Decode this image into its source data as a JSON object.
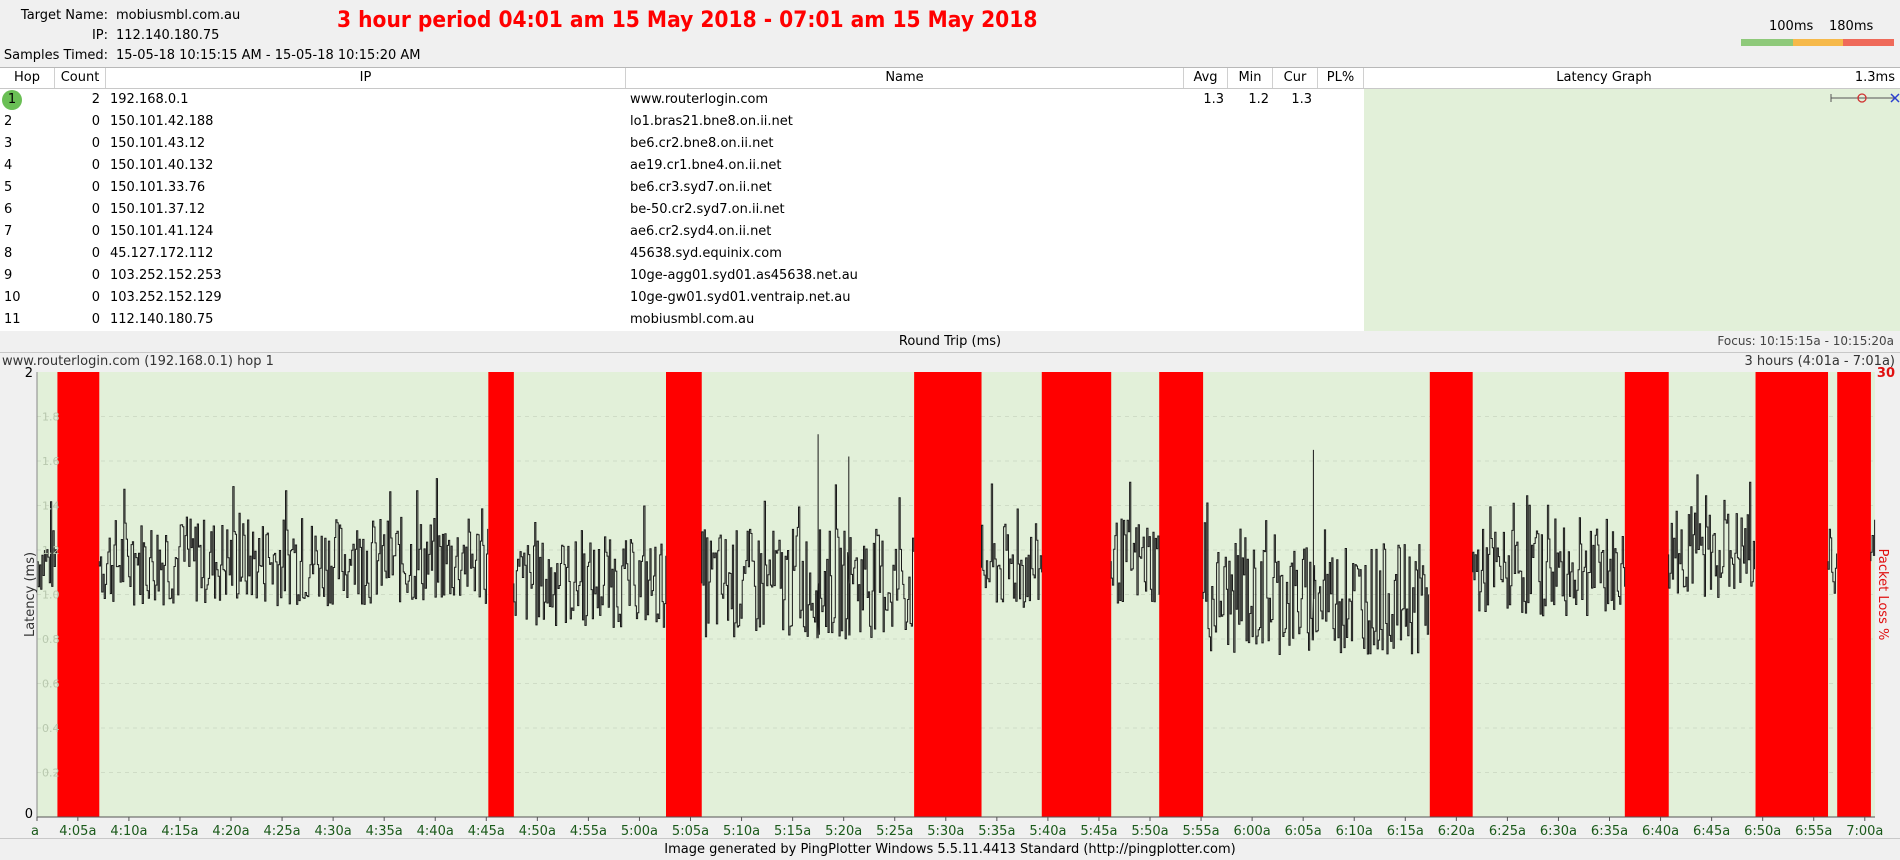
{
  "header": {
    "target_label": "Target Name:",
    "target_value": "mobiusmbl.com.au",
    "ip_label": "IP:",
    "ip_value": "112.140.180.75",
    "samples_label": "Samples Timed:",
    "samples_value": "15-05-18 10:15:15 AM - 15-05-18 10:15:20 AM",
    "banner": "3 hour period 04:01 am 15 May 2018 - 07:01 am 15 May 2018",
    "legend_100": "100ms",
    "legend_180": "180ms",
    "legend_colors": [
      "#8ec97a",
      "#f6b94a",
      "#ef6a5a"
    ]
  },
  "table": {
    "headers": {
      "hop": "Hop",
      "count": "Count",
      "ip": "IP",
      "name": "Name",
      "avg": "Avg",
      "min": "Min",
      "cur": "Cur",
      "pl": "PL%",
      "latency_graph": "Latency Graph",
      "scale": "1.3ms"
    },
    "rows": [
      {
        "hop": "1",
        "count": "2",
        "ip": "192.168.0.1",
        "name": "www.routerlogin.com",
        "avg": "1.3",
        "min": "1.2",
        "cur": "1.3"
      },
      {
        "hop": "2",
        "count": "0",
        "ip": "150.101.42.188",
        "name": "lo1.bras21.bne8.on.ii.net",
        "avg": "",
        "min": "",
        "cur": ""
      },
      {
        "hop": "3",
        "count": "0",
        "ip": "150.101.43.12",
        "name": "be6.cr2.bne8.on.ii.net",
        "avg": "",
        "min": "",
        "cur": ""
      },
      {
        "hop": "4",
        "count": "0",
        "ip": "150.101.40.132",
        "name": "ae19.cr1.bne4.on.ii.net",
        "avg": "",
        "min": "",
        "cur": ""
      },
      {
        "hop": "5",
        "count": "0",
        "ip": "150.101.33.76",
        "name": "be6.cr3.syd7.on.ii.net",
        "avg": "",
        "min": "",
        "cur": ""
      },
      {
        "hop": "6",
        "count": "0",
        "ip": "150.101.37.12",
        "name": "be-50.cr2.syd7.on.ii.net",
        "avg": "",
        "min": "",
        "cur": ""
      },
      {
        "hop": "7",
        "count": "0",
        "ip": "150.101.41.124",
        "name": "ae6.cr2.syd4.on.ii.net",
        "avg": "",
        "min": "",
        "cur": ""
      },
      {
        "hop": "8",
        "count": "0",
        "ip": "45.127.172.112",
        "name": "45638.syd.equinix.com",
        "avg": "",
        "min": "",
        "cur": ""
      },
      {
        "hop": "9",
        "count": "0",
        "ip": "103.252.152.253",
        "name": "10ge-agg01.syd01.as45638.net.au",
        "avg": "",
        "min": "",
        "cur": ""
      },
      {
        "hop": "10",
        "count": "0",
        "ip": "103.252.152.129",
        "name": "10ge-gw01.syd01.ventraip.net.au",
        "avg": "",
        "min": "",
        "cur": ""
      },
      {
        "hop": "11",
        "count": "0",
        "ip": "112.140.180.75",
        "name": "mobiusmbl.com.au",
        "avg": "",
        "min": "",
        "cur": ""
      }
    ]
  },
  "roundtrip": {
    "title": "Round Trip (ms)",
    "focus": "Focus: 10:15:15a - 10:15:20a"
  },
  "graph": {
    "title": "www.routerlogin.com (192.168.0.1) hop 1",
    "range": "3 hours (4:01a - 7:01a)",
    "left_axis_label": "Latency (ms)",
    "right_axis_label": "Packet Loss %"
  },
  "chart_data": {
    "type": "line",
    "title": "www.routerlogin.com (192.168.0.1) hop 1",
    "ylabel": "Latency (ms)",
    "y2label": "Packet Loss %",
    "ylim": [
      0,
      2
    ],
    "y2lim": [
      0,
      30
    ],
    "y_ticks": [
      "2",
      "0"
    ],
    "y2_ticks": [
      "30"
    ],
    "grid_values": [
      0.2,
      0.4,
      0.6,
      0.8,
      1.0,
      1.2,
      1.4,
      1.6,
      1.8
    ],
    "x_range_minutes": [
      241,
      421
    ],
    "x_tick_minutes": [
      241,
      245,
      250,
      255,
      260,
      265,
      270,
      275,
      280,
      285,
      290,
      295,
      300,
      305,
      310,
      315,
      320,
      325,
      330,
      335,
      340,
      345,
      350,
      355,
      360,
      365,
      370,
      375,
      380,
      385,
      390,
      395,
      400,
      405,
      410,
      415,
      420
    ],
    "x_tick_labels": [
      "a",
      "4:05a",
      "4:10a",
      "4:15a",
      "4:20a",
      "4:25a",
      "4:30a",
      "4:35a",
      "4:40a",
      "4:45a",
      "4:50a",
      "4:55a",
      "5:00a",
      "5:05a",
      "5:10a",
      "5:15a",
      "5:20a",
      "5:25a",
      "5:30a",
      "5:35a",
      "5:40a",
      "5:45a",
      "5:50a",
      "5:55a",
      "6:00a",
      "6:05a",
      "6:10a",
      "6:15a",
      "6:20a",
      "6:25a",
      "6:30a",
      "6:35a",
      "6:40a",
      "6:45a",
      "6:50a",
      "6:55a",
      "7:00a"
    ],
    "packet_loss_periods_minutes": [
      [
        243.0,
        247.1
      ],
      [
        285.2,
        287.7
      ],
      [
        302.6,
        306.1
      ],
      [
        326.9,
        333.5
      ],
      [
        339.4,
        346.2
      ],
      [
        350.9,
        355.2
      ],
      [
        377.4,
        381.6
      ],
      [
        396.5,
        400.8
      ],
      [
        409.3,
        416.4
      ],
      [
        417.3,
        420.6
      ]
    ],
    "latency_baseline_by_segment": [
      {
        "from": 241,
        "to": 243,
        "mean": 1.15,
        "spread": 0.15
      },
      {
        "from": 247.1,
        "to": 285.2,
        "mean": 1.15,
        "spread": 0.2
      },
      {
        "from": 287.7,
        "to": 302.6,
        "mean": 1.05,
        "spread": 0.2
      },
      {
        "from": 306.1,
        "to": 326.9,
        "mean": 1.05,
        "spread": 0.25
      },
      {
        "from": 333.5,
        "to": 339.4,
        "mean": 1.12,
        "spread": 0.2
      },
      {
        "from": 346.2,
        "to": 350.9,
        "mean": 1.15,
        "spread": 0.2
      },
      {
        "from": 355.2,
        "to": 377.4,
        "mean": 0.98,
        "spread": 0.25
      },
      {
        "from": 381.6,
        "to": 396.5,
        "mean": 1.1,
        "spread": 0.2
      },
      {
        "from": 400.8,
        "to": 409.3,
        "mean": 1.18,
        "spread": 0.2
      },
      {
        "from": 416.4,
        "to": 417.3,
        "mean": 1.15,
        "spread": 0.15
      },
      {
        "from": 420.6,
        "to": 421,
        "mean": 1.15,
        "spread": 0.15
      }
    ],
    "latency_peaks": [
      {
        "x": 317.5,
        "y": 1.72
      },
      {
        "x": 320.5,
        "y": 1.62
      },
      {
        "x": 366,
        "y": 1.65
      }
    ]
  },
  "footer": {
    "text": "Image generated by PingPlotter Windows 5.5.11.4413 Standard (http://pingplotter.com)"
  }
}
